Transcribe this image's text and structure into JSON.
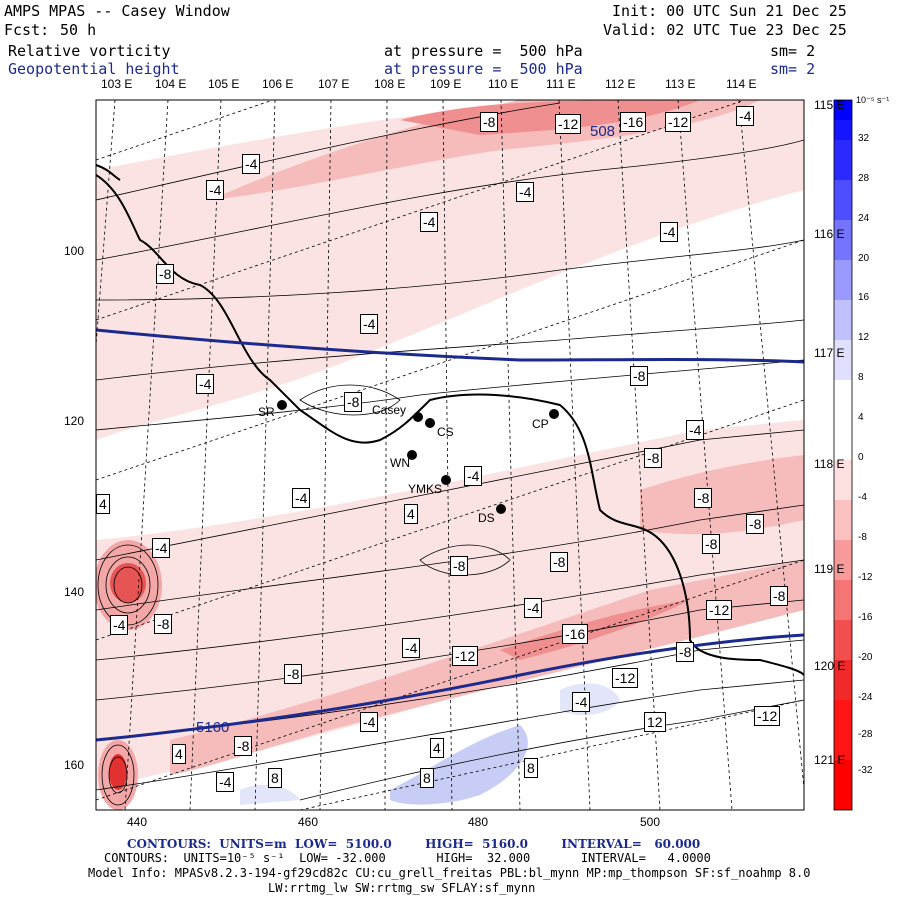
{
  "header": {
    "model_title": "AMPS MPAS -- Casey Window",
    "forecast_label": "Fcst:",
    "forecast_hours": "50 h",
    "init": "Init: 00 UTC Sun 21 Dec 25",
    "valid": "Valid: 02 UTC Tue 23 Dec 25",
    "field1_name": "Relative vorticity",
    "field1_level": "at pressure =  500 hPa",
    "field1_smooth": "sm= 2",
    "field2_name": "Geopotential height",
    "field2_level": "at pressure =  500 hPa",
    "field2_smooth": "sm= 2"
  },
  "longitude_labels_top": [
    "103 E",
    "104 E",
    "105 E",
    "106 E",
    "107 E",
    "108 E",
    "109 E",
    "110 E",
    "111 E",
    "112 E",
    "113 E",
    "114 E"
  ],
  "longitude_labels_right": [
    "115 E",
    "116 E",
    "117 E",
    "118 E",
    "119 E",
    "120 E",
    "121 E"
  ],
  "grid_labels_left": [
    "100",
    "120",
    "140",
    "160"
  ],
  "grid_labels_bottom": [
    "440",
    "460",
    "480",
    "500"
  ],
  "colorbar": {
    "unit": "10⁻⁵ s⁻¹",
    "ticks": [
      "32",
      "28",
      "24",
      "20",
      "16",
      "12",
      "8",
      "4",
      "0",
      "-4",
      "-8",
      "-12",
      "-16",
      "-20",
      "-24",
      "-28",
      "-32"
    ],
    "positive_color": "#0000ff",
    "negative_color": "#ff0000"
  },
  "stations": [
    {
      "name": "SR"
    },
    {
      "name": "Casey"
    },
    {
      "name": "CS"
    },
    {
      "name": "CP"
    },
    {
      "name": "WN"
    },
    {
      "name": "YMKS"
    },
    {
      "name": "DS"
    }
  ],
  "contour_labels": [
    "-8",
    "-12",
    "-16",
    "-12",
    "-4",
    "-4",
    "-4",
    "-4",
    "-4",
    "-4",
    "-8",
    "-4",
    "-4",
    "-8",
    "-8",
    "-4",
    "-8",
    "-4",
    "-8",
    "-4",
    "4",
    "-4",
    "4",
    "-8",
    "-8",
    "-8",
    "-8",
    "-12",
    "-4",
    "-4",
    "-8",
    "-8",
    "-4",
    "-16",
    "-12",
    "-8",
    "-8",
    "-12",
    "-4",
    "-4",
    "12",
    "4",
    "-8",
    "-12",
    "4",
    "8",
    "8",
    "-4",
    "8",
    "12",
    "4",
    "508"
  ],
  "height_label": "5160",
  "footer": {
    "contours1": "CONTOURS:  UNITS=m  LOW=  5100.0        HIGH=  5160.0        INTERVAL=   60.000",
    "contours2": "CONTOURS:  UNITS=10⁻⁵ s⁻¹  LOW= -32.000       HIGH=  32.000       INTERVAL=   4.0000",
    "model_info": "Model Info: MPASv8.2.3-194-gf29cd82c CU:cu_grell_freitas PBL:bl_mynn MP:mp_thompson SF:sf_noahmp 8.0",
    "model_info2": "LW:rrtmg_lw SW:rrtmg_sw SFLAY:sf_mynn"
  }
}
